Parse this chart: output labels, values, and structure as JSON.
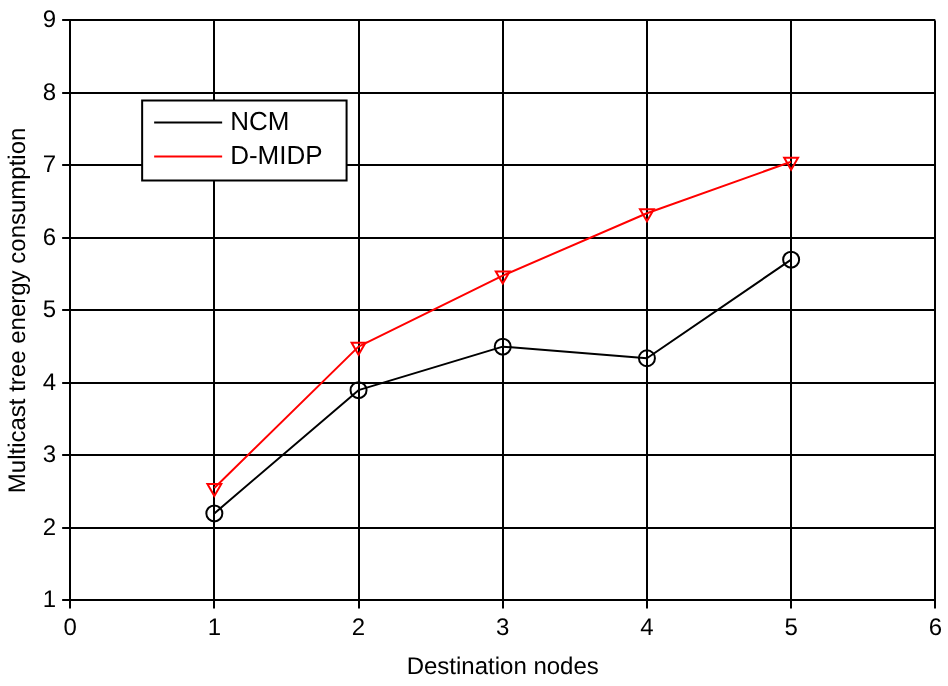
{
  "chart_data": {
    "type": "line",
    "xlabel": "Destination nodes",
    "ylabel": "Multicast tree energy consumption",
    "x": [
      1,
      2,
      3,
      4,
      5
    ],
    "series": [
      {
        "name": "NCM",
        "color": "#000000",
        "marker": "circle",
        "values": [
          2.2,
          3.9,
          4.5,
          4.34,
          5.7
        ]
      },
      {
        "name": "D-MIDP",
        "color": "#ff0000",
        "marker": "triangle",
        "values": [
          2.55,
          4.5,
          5.48,
          6.34,
          7.05
        ]
      }
    ],
    "xlim": [
      0,
      6
    ],
    "xticks": [
      0,
      1,
      2,
      3,
      4,
      5,
      6
    ],
    "ylim": [
      1,
      9
    ],
    "yticks": [
      1,
      2,
      3,
      4,
      5,
      6,
      7,
      8,
      9
    ],
    "grid": true,
    "legend": "top left",
    "line_style": "solid"
  }
}
